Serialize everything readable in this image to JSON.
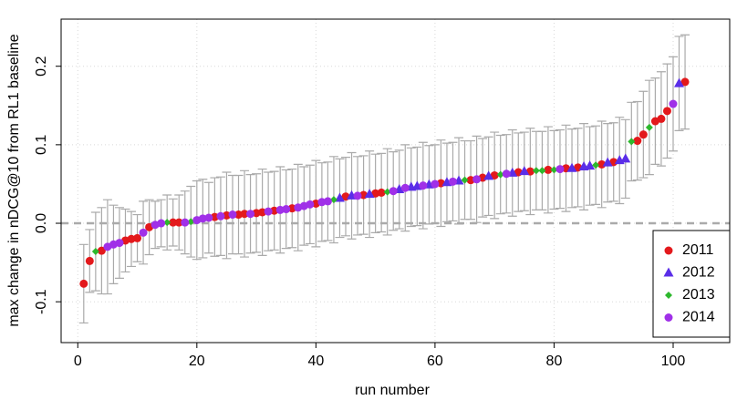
{
  "chart_data": {
    "type": "scatter",
    "xlabel": "run number",
    "ylabel": "max change in nDCG@10 from RL1 baseline",
    "xlim": [
      -2.8,
      109.5
    ],
    "ylim": [
      -0.152,
      0.26
    ],
    "xticks": [
      0,
      20,
      40,
      60,
      80,
      100
    ],
    "yticks": [
      -0.1,
      {
        "value": 0,
        "label": "0.0"
      },
      0.1,
      0.2
    ],
    "grid": true,
    "hline": 0,
    "legend": "bottom-right",
    "error_color": "#aaaaaa",
    "series": [
      {
        "name": "2011",
        "color": "#e3191c",
        "marker": "circle",
        "x": [
          1,
          2,
          4,
          8,
          9,
          10,
          12,
          16,
          17,
          23,
          25,
          27,
          28,
          30,
          31,
          33,
          36,
          40,
          45,
          48,
          50,
          51,
          61,
          66,
          68,
          70,
          74,
          76,
          79,
          82,
          84,
          88,
          90,
          94,
          95,
          97,
          98,
          99,
          102
        ],
        "values": [
          -0.077,
          -0.048,
          -0.035,
          -0.022,
          -0.02,
          -0.019,
          -0.005,
          0.001,
          0.001,
          0.008,
          0.01,
          0.011,
          0.012,
          0.013,
          0.014,
          0.016,
          0.019,
          0.025,
          0.034,
          0.036,
          0.038,
          0.039,
          0.051,
          0.055,
          0.058,
          0.061,
          0.065,
          0.066,
          0.068,
          0.07,
          0.071,
          0.075,
          0.078,
          0.105,
          0.113,
          0.13,
          0.133,
          0.143,
          0.18
        ],
        "errors": [
          0.05,
          0.04,
          0.055,
          0.04,
          0.035,
          0.03,
          0.035,
          0.03,
          0.035,
          0.05,
          0.055,
          0.05,
          0.055,
          0.05,
          0.055,
          0.05,
          0.05,
          0.055,
          0.05,
          0.05,
          0.05,
          0.05,
          0.055,
          0.05,
          0.05,
          0.055,
          0.05,
          0.055,
          0.055,
          0.055,
          0.05,
          0.055,
          0.05,
          0.05,
          0.055,
          0.055,
          0.06,
          0.06,
          0.06
        ]
      },
      {
        "name": "2012",
        "color": "#5a2ee8",
        "marker": "triangle",
        "x": [
          44,
          46,
          49,
          54,
          56,
          57,
          59,
          62,
          64,
          69,
          73,
          75,
          83,
          85,
          86,
          89,
          91,
          92,
          101
        ],
        "values": [
          0.032,
          0.035,
          0.037,
          0.043,
          0.046,
          0.047,
          0.049,
          0.052,
          0.054,
          0.06,
          0.064,
          0.066,
          0.07,
          0.072,
          0.073,
          0.077,
          0.08,
          0.082,
          0.178
        ],
        "errors": [
          0.05,
          0.055,
          0.055,
          0.05,
          0.05,
          0.05,
          0.05,
          0.05,
          0.055,
          0.05,
          0.055,
          0.05,
          0.05,
          0.055,
          0.05,
          0.05,
          0.055,
          0.05,
          0.06
        ]
      },
      {
        "name": "2013",
        "color": "#2db82d",
        "marker": "diamond",
        "x": [
          3,
          15,
          19,
          43,
          52,
          65,
          71,
          77,
          78,
          80,
          87,
          93,
          96
        ],
        "values": [
          -0.036,
          0.001,
          0.002,
          0.03,
          0.04,
          0.055,
          0.062,
          0.067,
          0.067,
          0.068,
          0.074,
          0.104,
          0.122
        ],
        "errors": [
          0.05,
          0.035,
          0.045,
          0.055,
          0.055,
          0.05,
          0.05,
          0.05,
          0.05,
          0.05,
          0.05,
          0.05,
          0.06
        ]
      },
      {
        "name": "2014",
        "color": "#a030e8",
        "marker": "circle",
        "x": [
          5,
          6,
          7,
          11,
          13,
          14,
          18,
          20,
          21,
          22,
          24,
          26,
          29,
          32,
          34,
          35,
          37,
          38,
          39,
          41,
          42,
          47,
          53,
          55,
          58,
          60,
          63,
          67,
          72,
          81,
          100
        ],
        "values": [
          -0.03,
          -0.027,
          -0.025,
          -0.012,
          -0.002,
          0.0,
          0.001,
          0.004,
          0.006,
          0.007,
          0.009,
          0.011,
          0.012,
          0.015,
          0.017,
          0.018,
          0.02,
          0.022,
          0.024,
          0.027,
          0.028,
          0.035,
          0.041,
          0.045,
          0.048,
          0.05,
          0.053,
          0.056,
          0.063,
          0.069,
          0.152
        ],
        "errors": [
          0.06,
          0.05,
          0.045,
          0.04,
          0.03,
          0.03,
          0.04,
          0.05,
          0.05,
          0.045,
          0.05,
          0.05,
          0.05,
          0.05,
          0.055,
          0.05,
          0.055,
          0.05,
          0.05,
          0.05,
          0.05,
          0.05,
          0.05,
          0.055,
          0.055,
          0.05,
          0.05,
          0.055,
          0.05,
          0.05,
          0.06
        ]
      }
    ]
  }
}
